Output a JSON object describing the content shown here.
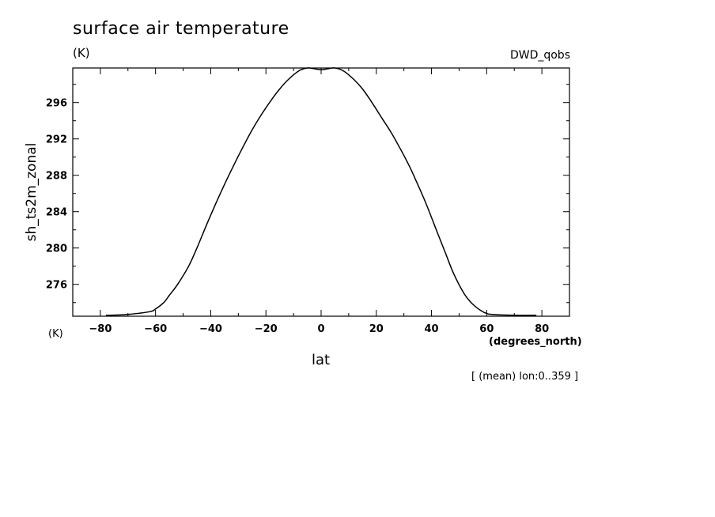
{
  "chart_data": {
    "type": "line",
    "title": "surface air temperature",
    "units": "(K)",
    "dataset": "DWD_qobs",
    "ylabel": "sh_ts2m_zonal",
    "ylabel_unit": "(K)",
    "xlabel": "lat",
    "xunit": "(degrees_north)",
    "note": "[ (mean) lon:0..359 ]",
    "xlim": [
      -90,
      90
    ],
    "ylim": [
      272.5,
      299.8
    ],
    "xticks": [
      -80,
      -60,
      -40,
      -20,
      0,
      20,
      40,
      60,
      80
    ],
    "xtick_labels": [
      "−80",
      "−60",
      "−40",
      "−20",
      "0",
      "20",
      "40",
      "60",
      "80"
    ],
    "yticks": [
      276,
      280,
      284,
      288,
      292,
      296
    ],
    "ytick_labels": [
      "276",
      "280",
      "284",
      "288",
      "292",
      "296"
    ],
    "grid": false,
    "series": [
      {
        "x": [
          -78,
          -70,
          -62,
          -60,
          -57,
          -55,
          -52,
          -48,
          -45,
          -42,
          -38,
          -35,
          -32,
          -28,
          -25,
          -22,
          -18,
          -15,
          -12,
          -8,
          -5,
          -2,
          0,
          2,
          5,
          8,
          12,
          15,
          18,
          22,
          25,
          28,
          32,
          35,
          38,
          42,
          45,
          48,
          52,
          55,
          58,
          60,
          62,
          70,
          78
        ],
        "y": [
          272.6,
          272.7,
          273.0,
          273.3,
          274.0,
          274.8,
          276.0,
          278.0,
          280.0,
          282.2,
          285.0,
          287.0,
          288.9,
          291.3,
          293.0,
          294.5,
          296.3,
          297.5,
          298.5,
          299.5,
          299.8,
          299.7,
          299.6,
          299.7,
          299.8,
          299.5,
          298.5,
          297.5,
          296.2,
          294.3,
          292.9,
          291.3,
          289.0,
          287.0,
          284.9,
          281.8,
          279.5,
          277.2,
          274.9,
          273.8,
          273.1,
          272.8,
          272.7,
          272.6,
          272.6
        ]
      }
    ]
  }
}
